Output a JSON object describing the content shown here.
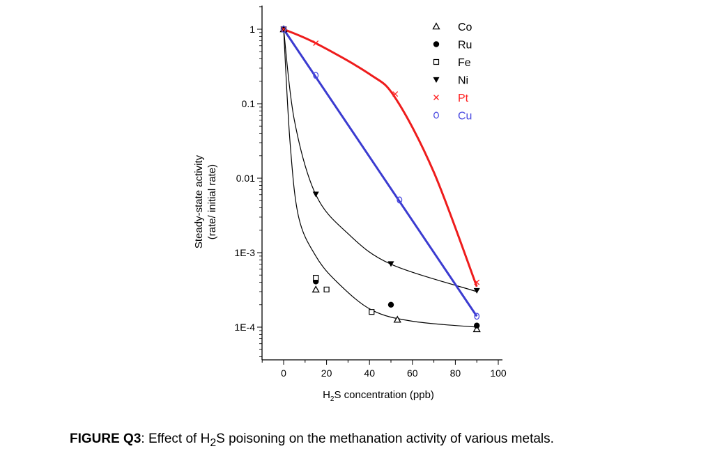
{
  "chart_data": {
    "type": "scatter",
    "xlabel_parts": [
      "H",
      "2",
      "S concentration (ppb)"
    ],
    "ylabel_lines": [
      "Steady-state activity",
      "(rate/ initial rate)"
    ],
    "xlim": [
      -10,
      102
    ],
    "ylim": [
      3.6e-05,
      2
    ],
    "yscale": "log",
    "xticks": [
      0,
      20,
      40,
      60,
      80,
      100
    ],
    "xtick_labels": [
      "0",
      "20",
      "40",
      "60",
      "80",
      "100"
    ],
    "yticks": [
      1,
      0.1,
      0.01,
      0.001,
      0.0001
    ],
    "ytick_labels": [
      "1",
      "0.1",
      "0.01",
      "1E-3",
      "1E-4"
    ],
    "grid": false,
    "legend_position": "top-right",
    "series": [
      {
        "name": "Co",
        "marker": "triangle-open",
        "color": "#000000",
        "x": [
          0,
          15,
          53,
          90
        ],
        "y": [
          1,
          0.00032,
          0.000126,
          9.4e-05
        ]
      },
      {
        "name": "Ru",
        "marker": "circle-filled",
        "color": "#000000",
        "x": [
          0,
          15,
          50,
          90
        ],
        "y": [
          1,
          0.00041,
          0.0002,
          0.000105
        ]
      },
      {
        "name": "Fe",
        "marker": "square-open",
        "color": "#000000",
        "x": [
          0,
          15,
          20,
          41
        ],
        "y": [
          1,
          0.00046,
          0.00032,
          0.00016
        ]
      },
      {
        "name": "Ni",
        "marker": "triangle-down-filled",
        "color": "#000000",
        "x": [
          0,
          15,
          50,
          90
        ],
        "y": [
          1,
          0.0061,
          0.00071,
          0.00031
        ]
      },
      {
        "name": "Pt",
        "marker": "x",
        "color": "#ff2020",
        "x": [
          0,
          15,
          52,
          90
        ],
        "y": [
          1,
          0.65,
          0.135,
          0.0004
        ]
      },
      {
        "name": "Cu",
        "marker": "o",
        "color": "#4a4ae0",
        "x": [
          0,
          15,
          54,
          90
        ],
        "y": [
          1,
          0.24,
          0.0051,
          0.00014
        ]
      }
    ],
    "curves": [
      {
        "color": "#000000",
        "x": [
          0,
          3,
          7,
          15,
          25,
          41,
          60,
          90
        ],
        "y": [
          1,
          0.03,
          0.003,
          0.0009,
          0.0004,
          0.00017,
          0.00012,
          0.0001
        ]
      },
      {
        "color": "#000000",
        "x": [
          0,
          5,
          15,
          30,
          50,
          90
        ],
        "y": [
          1,
          0.06,
          0.006,
          0.0018,
          0.0007,
          0.0003
        ]
      },
      {
        "color": "#ee1c1c",
        "x": [
          0,
          15,
          40,
          52,
          70,
          90
        ],
        "y": [
          1,
          0.65,
          0.25,
          0.12,
          0.012,
          0.00035
        ]
      },
      {
        "color": "#3b3bd0",
        "x": [
          0,
          90
        ],
        "y": [
          1,
          0.00014
        ]
      }
    ]
  },
  "caption": {
    "label": "FIGURE Q3",
    "text_before_sub": ": Effect of H",
    "sub": "2",
    "text_after_sub": "S poisoning on the methanation activity of various metals."
  }
}
